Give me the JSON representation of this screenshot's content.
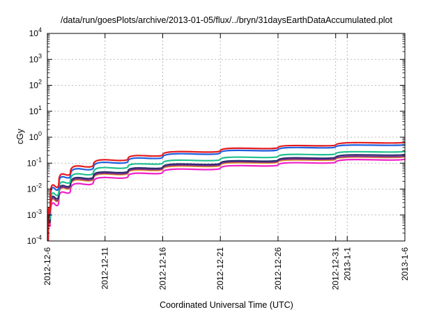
{
  "chart_data": {
    "type": "line",
    "title": "/data/run/goesPlots/archive/2013-01-05/flux/../bryn/31daysEarthDataAccumulated.plot",
    "xlabel": "Coordinated Universal Time (UTC)",
    "ylabel": "cGy",
    "y_scale": "log",
    "ylim": [
      0.0001,
      10000
    ],
    "xlim": [
      "2012-12-06",
      "2013-01-06"
    ],
    "grid": true,
    "y_ticks": [
      {
        "value": 0.0001,
        "base": "10",
        "exp": "-4"
      },
      {
        "value": 0.001,
        "base": "10",
        "exp": "-3"
      },
      {
        "value": 0.01,
        "base": "10",
        "exp": "-2"
      },
      {
        "value": 0.1,
        "base": "10",
        "exp": "-1"
      },
      {
        "value": 1,
        "base": "10",
        "exp": "0"
      },
      {
        "value": 10,
        "base": "10",
        "exp": "1"
      },
      {
        "value": 100,
        "base": "10",
        "exp": "2"
      },
      {
        "value": 1000,
        "base": "10",
        "exp": "3"
      },
      {
        "value": 10000,
        "base": "10",
        "exp": "4"
      }
    ],
    "x_ticks": [
      {
        "date": "2012-12-06",
        "label": "2012-12-6"
      },
      {
        "date": "2012-12-11",
        "label": "2012-12-11"
      },
      {
        "date": "2012-12-16",
        "label": "2012-12-16"
      },
      {
        "date": "2012-12-21",
        "label": "2012-12-21"
      },
      {
        "date": "2012-12-26",
        "label": "2012-12-26"
      },
      {
        "date": "2012-12-31",
        "label": "2012-12-31"
      },
      {
        "date": "2013-01-01",
        "label": "2013-1-1"
      },
      {
        "date": "2013-01-06",
        "label": "2013-1-6"
      }
    ],
    "series": [
      {
        "color": "#e41a1c",
        "points": [
          [
            "2012-12-06T06:00",
            0.004
          ],
          [
            "2012-12-07",
            0.02
          ],
          [
            "2012-12-08",
            0.045
          ],
          [
            "2012-12-10",
            0.09
          ],
          [
            "2012-12-13",
            0.15
          ],
          [
            "2012-12-16",
            0.21
          ],
          [
            "2012-12-21",
            0.3
          ],
          [
            "2012-12-26",
            0.4
          ],
          [
            "2012-12-31",
            0.5
          ],
          [
            "2013-01-06",
            0.65
          ]
        ]
      },
      {
        "color": "#1f5fe0",
        "points": [
          [
            "2012-12-06T06:00",
            0.003
          ],
          [
            "2012-12-07",
            0.016
          ],
          [
            "2012-12-08",
            0.035
          ],
          [
            "2012-12-10",
            0.07
          ],
          [
            "2012-12-13",
            0.12
          ],
          [
            "2012-12-16",
            0.17
          ],
          [
            "2012-12-21",
            0.25
          ],
          [
            "2012-12-26",
            0.33
          ],
          [
            "2012-12-31",
            0.42
          ],
          [
            "2013-01-06",
            0.52
          ]
        ]
      },
      {
        "color": "#20c090",
        "points": [
          [
            "2012-12-06T06:00",
            0.0018
          ],
          [
            "2012-12-07",
            0.01
          ],
          [
            "2012-12-08",
            0.022
          ],
          [
            "2012-12-10",
            0.045
          ],
          [
            "2012-12-13",
            0.075
          ],
          [
            "2012-12-16",
            0.1
          ],
          [
            "2012-12-21",
            0.14
          ],
          [
            "2012-12-26",
            0.18
          ],
          [
            "2012-12-31",
            0.23
          ],
          [
            "2013-01-06",
            0.29
          ]
        ]
      },
      {
        "color": "#2b2f6e",
        "points": [
          [
            "2012-12-06T06:00",
            0.0013
          ],
          [
            "2012-12-07",
            0.0075
          ],
          [
            "2012-12-08",
            0.016
          ],
          [
            "2012-12-10",
            0.032
          ],
          [
            "2012-12-13",
            0.05
          ],
          [
            "2012-12-16",
            0.07
          ],
          [
            "2012-12-21",
            0.1
          ],
          [
            "2012-12-26",
            0.13
          ],
          [
            "2012-12-31",
            0.17
          ],
          [
            "2013-01-06",
            0.22
          ]
        ]
      },
      {
        "color": "#8e2f8e",
        "points": [
          [
            "2012-12-06T06:00",
            0.0011
          ],
          [
            "2012-12-07",
            0.0065
          ],
          [
            "2012-12-08",
            0.014
          ],
          [
            "2012-12-10",
            0.028
          ],
          [
            "2012-12-13",
            0.045
          ],
          [
            "2012-12-16",
            0.063
          ],
          [
            "2012-12-21",
            0.09
          ],
          [
            "2012-12-26",
            0.12
          ],
          [
            "2012-12-31",
            0.15
          ],
          [
            "2013-01-06",
            0.19
          ]
        ]
      },
      {
        "color": "#e8a020",
        "points": [
          [
            "2012-12-06T06:00",
            0.001
          ],
          [
            "2012-12-07",
            0.006
          ],
          [
            "2012-12-08",
            0.013
          ],
          [
            "2012-12-10",
            0.026
          ],
          [
            "2012-12-13",
            0.042
          ],
          [
            "2012-12-16",
            0.058
          ],
          [
            "2012-12-21",
            0.083
          ],
          [
            "2012-12-26",
            0.11
          ],
          [
            "2012-12-31",
            0.14
          ],
          [
            "2013-01-06",
            0.18
          ]
        ]
      },
      {
        "color": "#f020c8",
        "points": [
          [
            "2012-12-06T06:00",
            0.0007
          ],
          [
            "2012-12-07",
            0.0042
          ],
          [
            "2012-12-08",
            0.009
          ],
          [
            "2012-12-10",
            0.019
          ],
          [
            "2012-12-13",
            0.031
          ],
          [
            "2012-12-16",
            0.044
          ],
          [
            "2012-12-21",
            0.064
          ],
          [
            "2012-12-26",
            0.085
          ],
          [
            "2012-12-31",
            0.11
          ],
          [
            "2013-01-06",
            0.145
          ]
        ]
      }
    ]
  }
}
